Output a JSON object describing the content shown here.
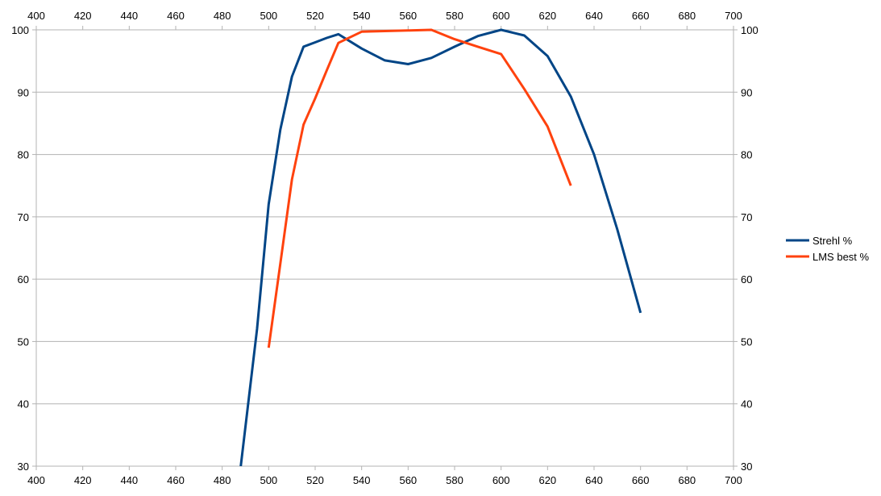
{
  "chart_data": {
    "type": "line",
    "title": "",
    "xlabel": "",
    "ylabel": "",
    "xlim": [
      400,
      700
    ],
    "ylim": [
      30,
      100
    ],
    "x_ticks": [
      400,
      420,
      440,
      460,
      480,
      500,
      520,
      540,
      560,
      580,
      600,
      620,
      640,
      660,
      680,
      700
    ],
    "y_ticks": [
      30,
      40,
      50,
      60,
      70,
      80,
      90,
      100
    ],
    "x_axis_top": true,
    "y_axis_right": true,
    "grid": "horizontal",
    "legend_position": "right",
    "series": [
      {
        "name": "Strehl %",
        "color": "#004586",
        "x": [
          488,
          495,
          500,
          505,
          510,
          515,
          520,
          525,
          530,
          540,
          550,
          560,
          570,
          580,
          590,
          600,
          610,
          620,
          630,
          640,
          650,
          660
        ],
        "y": [
          30,
          52,
          72,
          84,
          92.5,
          97.3,
          98,
          98.7,
          99.3,
          97,
          95.1,
          94.5,
          95.5,
          97.3,
          99,
          100,
          99.1,
          95.8,
          89.3,
          80,
          68,
          54.6
        ]
      },
      {
        "name": "LMS best %",
        "color": "#ff420e",
        "x": [
          500,
          505,
          510,
          515,
          520,
          525,
          530,
          540,
          550,
          560,
          570,
          580,
          590,
          600,
          610,
          620,
          630
        ],
        "y": [
          49,
          62.5,
          76,
          84.8,
          89,
          93.5,
          97.9,
          99.7,
          99.8,
          99.9,
          100,
          98.5,
          97.3,
          96.1,
          90.5,
          84.5,
          75
        ]
      }
    ]
  }
}
